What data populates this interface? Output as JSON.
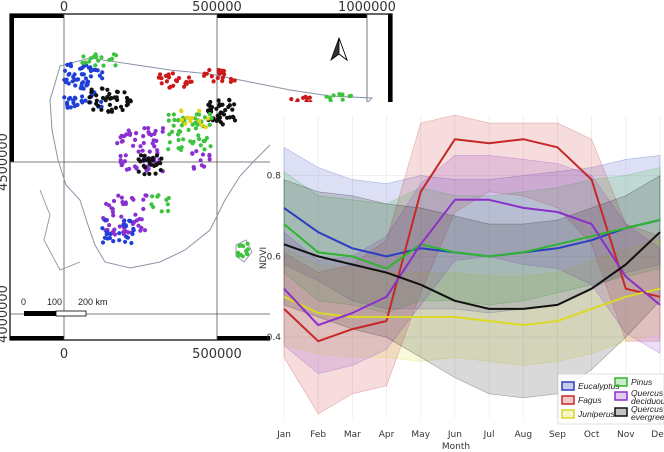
{
  "map": {
    "x_ticks": [
      "0",
      "500000",
      "1000000"
    ],
    "x_ticks_bottom": [
      "0",
      "500000"
    ],
    "y_ticks": [
      "4500000",
      "4000000"
    ],
    "scale_labels": [
      "0",
      "100",
      "200 km"
    ],
    "north_arrow": "north-arrow-icon",
    "colors": {
      "eucalyptus": "#1f3fd6",
      "fagus": "#cc1a1a",
      "juniperus": "#e6d21a",
      "pinus": "#3cc43c",
      "quercus_deciduous": "#8a2fd0",
      "quercus_evergreen": "#111111"
    }
  },
  "chart_data": {
    "type": "line",
    "title": "",
    "xlabel": "Month",
    "ylabel": "NDVI",
    "categories": [
      "Jan",
      "Feb",
      "Mar",
      "Apr",
      "May",
      "Jun",
      "Jul",
      "Aug",
      "Sep",
      "Oct",
      "Nov",
      "Dec"
    ],
    "ylim": [
      0.2,
      0.95
    ],
    "y_ticks": [
      "0.4",
      "0.6",
      "0.8"
    ],
    "series": [
      {
        "name": "Eucalyptus",
        "color": "#2a3fbf",
        "values": [
          0.72,
          0.66,
          0.62,
          0.6,
          0.62,
          0.61,
          0.6,
          0.61,
          0.62,
          0.64,
          0.67,
          0.69
        ],
        "lower": [
          0.58,
          0.54,
          0.49,
          0.47,
          0.47,
          0.47,
          0.46,
          0.47,
          0.48,
          0.52,
          0.56,
          0.58
        ],
        "upper": [
          0.87,
          0.82,
          0.79,
          0.78,
          0.8,
          0.79,
          0.79,
          0.8,
          0.81,
          0.82,
          0.84,
          0.85
        ]
      },
      {
        "name": "Fagus",
        "color": "#c62828",
        "values": [
          0.47,
          0.39,
          0.42,
          0.44,
          0.76,
          0.89,
          0.88,
          0.89,
          0.87,
          0.79,
          0.52,
          0.5
        ],
        "lower": [
          0.35,
          0.21,
          0.26,
          0.28,
          0.51,
          0.71,
          0.76,
          0.75,
          0.72,
          0.63,
          0.39,
          0.39
        ],
        "upper": [
          0.61,
          0.56,
          0.58,
          0.64,
          0.93,
          0.95,
          0.93,
          0.93,
          0.93,
          0.89,
          0.68,
          0.65
        ]
      },
      {
        "name": "Juniperus",
        "color": "#d9d926",
        "values": [
          0.5,
          0.46,
          0.45,
          0.45,
          0.45,
          0.45,
          0.44,
          0.43,
          0.44,
          0.47,
          0.5,
          0.52
        ],
        "lower": [
          0.38,
          0.36,
          0.35,
          0.35,
          0.34,
          0.35,
          0.34,
          0.33,
          0.34,
          0.36,
          0.39,
          0.41
        ],
        "upper": [
          0.62,
          0.58,
          0.57,
          0.56,
          0.56,
          0.56,
          0.55,
          0.55,
          0.56,
          0.59,
          0.62,
          0.64
        ]
      },
      {
        "name": "Pinus",
        "color": "#2fb52f",
        "values": [
          0.68,
          0.61,
          0.6,
          0.57,
          0.63,
          0.61,
          0.6,
          0.61,
          0.63,
          0.65,
          0.67,
          0.69
        ],
        "lower": [
          0.56,
          0.49,
          0.48,
          0.46,
          0.49,
          0.49,
          0.48,
          0.49,
          0.51,
          0.53,
          0.55,
          0.57
        ],
        "upper": [
          0.81,
          0.75,
          0.74,
          0.73,
          0.77,
          0.75,
          0.75,
          0.76,
          0.77,
          0.79,
          0.8,
          0.82
        ]
      },
      {
        "name": "Quercus deciduous",
        "color": "#8b2fc9",
        "values": [
          0.52,
          0.43,
          0.46,
          0.5,
          0.63,
          0.74,
          0.74,
          0.72,
          0.71,
          0.68,
          0.55,
          0.48
        ],
        "lower": [
          0.38,
          0.31,
          0.33,
          0.37,
          0.48,
          0.59,
          0.6,
          0.58,
          0.57,
          0.53,
          0.41,
          0.36
        ],
        "upper": [
          0.66,
          0.59,
          0.6,
          0.65,
          0.78,
          0.85,
          0.85,
          0.84,
          0.83,
          0.8,
          0.68,
          0.62
        ]
      },
      {
        "name": "Quercus evergreen",
        "color": "#111111",
        "values": [
          0.63,
          0.6,
          0.58,
          0.56,
          0.53,
          0.49,
          0.47,
          0.47,
          0.48,
          0.52,
          0.58,
          0.66
        ],
        "lower": [
          0.48,
          0.45,
          0.42,
          0.4,
          0.35,
          0.3,
          0.26,
          0.25,
          0.26,
          0.32,
          0.4,
          0.49
        ],
        "upper": [
          0.79,
          0.76,
          0.75,
          0.73,
          0.72,
          0.7,
          0.68,
          0.68,
          0.69,
          0.72,
          0.75,
          0.8
        ]
      }
    ],
    "legend": [
      {
        "name": "Eucalyptus",
        "color": "#2a3fbf"
      },
      {
        "name": "Fagus",
        "color": "#c62828"
      },
      {
        "name": "Juniperus",
        "color": "#d9d926"
      },
      {
        "name": "Pinus",
        "color": "#2fb52f"
      },
      {
        "name": "Quercus deciduous",
        "color": "#8b2fc9"
      },
      {
        "name": "Quercus evergreen",
        "color": "#111111"
      }
    ],
    "legend_labels": {
      "eucalyptus": "Eucalyptus",
      "fagus": "Fagus",
      "juniperus": "Juniperus",
      "pinus": "Pinus",
      "quercus_deciduous": [
        "Quercus",
        "deciduous"
      ],
      "quercus_evergreen": [
        "Quercus",
        "evergreen"
      ]
    },
    "legend_position": "bottom-right"
  }
}
